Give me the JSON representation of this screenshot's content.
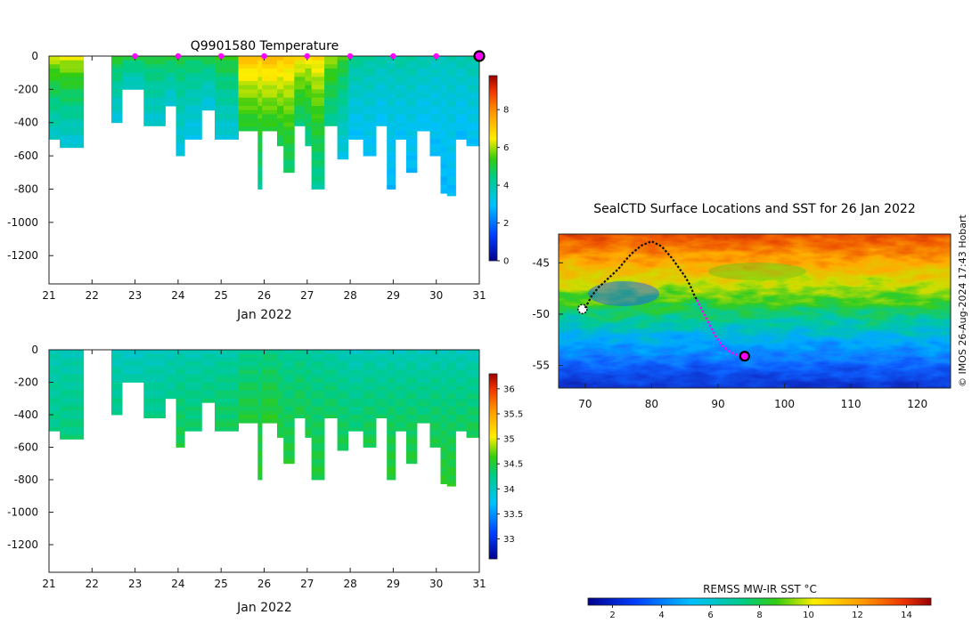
{
  "figure": {
    "credit": "© IMOS 26-Aug-2024 17:43 Hobart"
  },
  "chart_data": [
    {
      "type": "heatmap",
      "title": "Q9901580  Temperature",
      "xlabel": "Jan 2022",
      "ylabel": "",
      "x_ticks": [
        "21",
        "22",
        "23",
        "24",
        "25",
        "26",
        "27",
        "28",
        "29",
        "30",
        "31"
      ],
      "xlim": [
        21,
        31
      ],
      "y_ticks": [
        "0",
        "-200",
        "-400",
        "-600",
        "-800",
        "-1000",
        "-1200"
      ],
      "ylim": [
        -1370,
        0
      ],
      "colorbar": {
        "min": 0,
        "max": 9.8,
        "ticks": [
          "0",
          "2",
          "4",
          "6",
          "8"
        ]
      },
      "markers": {
        "color": "#ff00ff",
        "days": [
          23,
          24,
          25,
          26,
          27,
          28,
          29,
          30
        ],
        "current_day": 31
      },
      "profiles": [
        {
          "t0": 21.0,
          "t1": 21.25,
          "depth": -500,
          "surface": 6.2,
          "deep": 3.6
        },
        {
          "t0": 21.25,
          "t1": 21.8,
          "depth": -555,
          "surface": 6.4,
          "deep": 3.4
        },
        {
          "t0": 22.45,
          "t1": 22.7,
          "depth": -410,
          "surface": 5.2,
          "deep": 3.4
        },
        {
          "t0": 22.7,
          "t1": 23.2,
          "depth": -200,
          "surface": 5.0,
          "deep": 3.6
        },
        {
          "t0": 23.2,
          "t1": 23.7,
          "depth": -420,
          "surface": 5.0,
          "deep": 3.5
        },
        {
          "t0": 23.7,
          "t1": 23.95,
          "depth": -300,
          "surface": 5.1,
          "deep": 3.4
        },
        {
          "t0": 23.95,
          "t1": 24.15,
          "depth": -600,
          "surface": 5.0,
          "deep": 3.3
        },
        {
          "t0": 24.15,
          "t1": 24.55,
          "depth": -500,
          "surface": 4.9,
          "deep": 3.2
        },
        {
          "t0": 24.55,
          "t1": 24.85,
          "depth": -330,
          "surface": 5.0,
          "deep": 3.3
        },
        {
          "t0": 24.85,
          "t1": 25.4,
          "depth": -500,
          "surface": 5.3,
          "deep": 3.4
        },
        {
          "t0": 25.4,
          "t1": 25.85,
          "depth": -450,
          "surface": 7.3,
          "deep": 5.0
        },
        {
          "t0": 25.85,
          "t1": 25.95,
          "depth": -800,
          "surface": 7.1,
          "deep": 4.2
        },
        {
          "t0": 25.95,
          "t1": 26.3,
          "depth": -450,
          "surface": 7.4,
          "deep": 5.1
        },
        {
          "t0": 26.3,
          "t1": 26.45,
          "depth": -540,
          "surface": 7.2,
          "deep": 4.8
        },
        {
          "t0": 26.45,
          "t1": 26.7,
          "depth": -700,
          "surface": 7.1,
          "deep": 4.6
        },
        {
          "t0": 26.7,
          "t1": 26.95,
          "depth": -420,
          "surface": 6.8,
          "deep": 4.5
        },
        {
          "t0": 26.95,
          "t1": 27.1,
          "depth": -540,
          "surface": 6.6,
          "deep": 4.3
        },
        {
          "t0": 27.1,
          "t1": 27.4,
          "depth": -800,
          "surface": 6.8,
          "deep": 4.2
        },
        {
          "t0": 27.4,
          "t1": 27.7,
          "depth": -420,
          "surface": 6.0,
          "deep": 4.2
        },
        {
          "t0": 27.7,
          "t1": 27.95,
          "depth": -620,
          "surface": 5.4,
          "deep": 3.3
        },
        {
          "t0": 27.95,
          "t1": 28.3,
          "depth": -500,
          "surface": 4.4,
          "deep": 3.0
        },
        {
          "t0": 28.3,
          "t1": 28.6,
          "depth": -600,
          "surface": 4.2,
          "deep": 3.0
        },
        {
          "t0": 28.6,
          "t1": 28.85,
          "depth": -420,
          "surface": 4.1,
          "deep": 3.0
        },
        {
          "t0": 28.85,
          "t1": 29.05,
          "depth": -800,
          "surface": 4.0,
          "deep": 2.9
        },
        {
          "t0": 29.05,
          "t1": 29.3,
          "depth": -500,
          "surface": 4.2,
          "deep": 3.0
        },
        {
          "t0": 29.3,
          "t1": 29.55,
          "depth": -700,
          "surface": 4.1,
          "deep": 2.9
        },
        {
          "t0": 29.55,
          "t1": 29.85,
          "depth": -450,
          "surface": 4.0,
          "deep": 3.0
        },
        {
          "t0": 29.85,
          "t1": 30.1,
          "depth": -600,
          "surface": 3.9,
          "deep": 2.9
        },
        {
          "t0": 30.1,
          "t1": 30.25,
          "depth": -830,
          "surface": 3.8,
          "deep": 2.8
        },
        {
          "t0": 30.25,
          "t1": 30.45,
          "depth": -840,
          "surface": 3.9,
          "deep": 2.9
        },
        {
          "t0": 30.45,
          "t1": 30.7,
          "depth": -500,
          "surface": 4.0,
          "deep": 2.9
        },
        {
          "t0": 30.7,
          "t1": 31.0,
          "depth": -540,
          "surface": 4.1,
          "deep": 3.0
        }
      ]
    },
    {
      "type": "heatmap",
      "title": "",
      "xlabel": "Jan 2022",
      "ylabel": "",
      "x_ticks": [
        "21",
        "22",
        "23",
        "24",
        "25",
        "26",
        "27",
        "28",
        "29",
        "30",
        "31"
      ],
      "xlim": [
        21,
        31
      ],
      "y_ticks": [
        "0",
        "-200",
        "-400",
        "-600",
        "-800",
        "-1000",
        "-1200"
      ],
      "ylim": [
        -1370,
        0
      ],
      "colorbar": {
        "min": 32.6,
        "max": 36.3,
        "ticks": [
          "33",
          "33.5",
          "34",
          "34.5",
          "35",
          "35.5",
          "36"
        ]
      },
      "profiles": [
        {
          "t0": 21.0,
          "t1": 21.25,
          "depth": -500,
          "surface": 34.05,
          "deep": 34.25
        },
        {
          "t0": 21.25,
          "t1": 21.8,
          "depth": -555,
          "surface": 34.05,
          "deep": 34.3
        },
        {
          "t0": 22.45,
          "t1": 22.7,
          "depth": -410,
          "surface": 34.0,
          "deep": 34.25
        },
        {
          "t0": 22.7,
          "t1": 23.2,
          "depth": -200,
          "surface": 34.0,
          "deep": 34.1
        },
        {
          "t0": 23.2,
          "t1": 23.7,
          "depth": -420,
          "surface": 34.0,
          "deep": 34.25
        },
        {
          "t0": 23.7,
          "t1": 23.95,
          "depth": -300,
          "surface": 34.05,
          "deep": 34.2
        },
        {
          "t0": 23.95,
          "t1": 24.15,
          "depth": -600,
          "surface": 34.05,
          "deep": 34.45
        },
        {
          "t0": 24.15,
          "t1": 24.55,
          "depth": -500,
          "surface": 34.05,
          "deep": 34.35
        },
        {
          "t0": 24.55,
          "t1": 24.85,
          "depth": -330,
          "surface": 34.05,
          "deep": 34.3
        },
        {
          "t0": 24.85,
          "t1": 25.4,
          "depth": -500,
          "surface": 34.1,
          "deep": 34.4
        },
        {
          "t0": 25.4,
          "t1": 25.85,
          "depth": -450,
          "surface": 34.2,
          "deep": 34.5
        },
        {
          "t0": 25.85,
          "t1": 25.95,
          "depth": -800,
          "surface": 34.2,
          "deep": 34.55
        },
        {
          "t0": 25.95,
          "t1": 26.3,
          "depth": -450,
          "surface": 34.25,
          "deep": 34.55
        },
        {
          "t0": 26.3,
          "t1": 26.45,
          "depth": -540,
          "surface": 34.2,
          "deep": 34.5
        },
        {
          "t0": 26.45,
          "t1": 26.7,
          "depth": -700,
          "surface": 34.15,
          "deep": 34.5
        },
        {
          "t0": 26.7,
          "t1": 26.95,
          "depth": -420,
          "surface": 34.2,
          "deep": 34.45
        },
        {
          "t0": 26.95,
          "t1": 27.1,
          "depth": -540,
          "surface": 34.15,
          "deep": 34.45
        },
        {
          "t0": 27.1,
          "t1": 27.4,
          "depth": -800,
          "surface": 34.15,
          "deep": 34.5
        },
        {
          "t0": 27.4,
          "t1": 27.7,
          "depth": -420,
          "surface": 34.1,
          "deep": 34.4
        },
        {
          "t0": 27.7,
          "t1": 27.95,
          "depth": -620,
          "surface": 34.05,
          "deep": 34.45
        },
        {
          "t0": 27.95,
          "t1": 28.3,
          "depth": -500,
          "surface": 34.0,
          "deep": 34.35
        },
        {
          "t0": 28.3,
          "t1": 28.6,
          "depth": -600,
          "surface": 34.05,
          "deep": 34.45
        },
        {
          "t0": 28.6,
          "t1": 28.85,
          "depth": -420,
          "surface": 34.0,
          "deep": 34.35
        },
        {
          "t0": 28.85,
          "t1": 29.05,
          "depth": -800,
          "surface": 34.05,
          "deep": 34.55
        },
        {
          "t0": 29.05,
          "t1": 29.3,
          "depth": -500,
          "surface": 34.0,
          "deep": 34.4
        },
        {
          "t0": 29.3,
          "t1": 29.55,
          "depth": -700,
          "surface": 34.05,
          "deep": 34.5
        },
        {
          "t0": 29.55,
          "t1": 29.85,
          "depth": -450,
          "surface": 34.0,
          "deep": 34.35
        },
        {
          "t0": 29.85,
          "t1": 30.1,
          "depth": -600,
          "surface": 34.05,
          "deep": 34.45
        },
        {
          "t0": 30.1,
          "t1": 30.25,
          "depth": -830,
          "surface": 34.0,
          "deep": 34.55
        },
        {
          "t0": 30.25,
          "t1": 30.45,
          "depth": -840,
          "surface": 34.05,
          "deep": 34.55
        },
        {
          "t0": 30.45,
          "t1": 30.7,
          "depth": -500,
          "surface": 34.0,
          "deep": 34.4
        },
        {
          "t0": 30.7,
          "t1": 31.0,
          "depth": -540,
          "surface": 34.0,
          "deep": 34.45
        }
      ]
    },
    {
      "type": "heatmap",
      "title": "SealCTD Surface Locations and SST for 26 Jan 2022",
      "xlabel": "",
      "ylabel": "",
      "x_ticks": [
        "70",
        "80",
        "90",
        "100",
        "110",
        "120"
      ],
      "xlim": [
        66,
        125
      ],
      "y_ticks": [
        "-45",
        "-50",
        "-55"
      ],
      "ylim": [
        -57.2,
        -42.2
      ],
      "colorbar": {
        "label": "REMSS MW-IR SST °C",
        "min": 1,
        "max": 15,
        "ticks": [
          "2",
          "4",
          "6",
          "8",
          "10",
          "12",
          "14"
        ]
      },
      "track_past": [
        [
          70.0,
          -49.4
        ],
        [
          71.0,
          -48.2
        ],
        [
          72.0,
          -47.4
        ],
        [
          73.0,
          -46.8
        ],
        [
          74.0,
          -46.2
        ],
        [
          75.0,
          -45.6
        ],
        [
          76.0,
          -44.8
        ],
        [
          77.0,
          -44.1
        ],
        [
          78.5,
          -43.3
        ],
        [
          80.0,
          -42.9
        ],
        [
          81.5,
          -43.4
        ],
        [
          83.0,
          -44.5
        ],
        [
          84.0,
          -45.4
        ],
        [
          85.0,
          -46.3
        ],
        [
          85.8,
          -47.2
        ],
        [
          86.3,
          -48.0
        ],
        [
          86.8,
          -48.6
        ]
      ],
      "track_recent": [
        [
          86.8,
          -48.6
        ],
        [
          87.6,
          -49.6
        ],
        [
          88.5,
          -50.7
        ],
        [
          89.5,
          -52.0
        ],
        [
          90.5,
          -53.0
        ],
        [
          91.8,
          -53.7
        ],
        [
          93.0,
          -54.0
        ],
        [
          94.0,
          -54.1
        ]
      ],
      "deployment_cluster": [
        69.6,
        -49.5
      ],
      "current_position": [
        94.0,
        -54.1
      ],
      "track_colors": {
        "past": "#111111",
        "recent": "#ff00ff"
      }
    }
  ]
}
